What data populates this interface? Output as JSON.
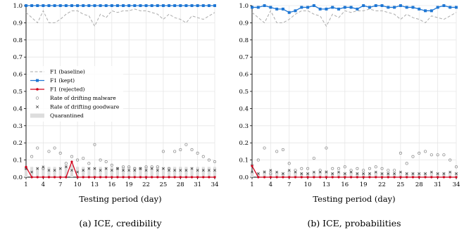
{
  "chart_data": [
    {
      "type": "line",
      "caption": "(a) ICE, credibility",
      "xlabel": "Testing period (day)",
      "ylabel": "",
      "xlim": [
        1,
        34
      ],
      "ylim": [
        0.0,
        1.0
      ],
      "xticks": [
        "1",
        "4",
        "7",
        "10",
        "13",
        "16",
        "19",
        "22",
        "25",
        "28",
        "31",
        "34"
      ],
      "yticks": [
        "0.0",
        "0.1",
        "0.2",
        "0.3",
        "0.4",
        "0.5",
        "0.6",
        "0.7",
        "0.8",
        "0.9",
        "1.0"
      ],
      "legend": {
        "position": "center-left",
        "entries": [
          "F1 (baseline)",
          "F1 (kept)",
          "F1 (rejected)",
          "Rate of drifting malware",
          "Rate of drifting goodware",
          "Quarantined"
        ]
      },
      "x": [
        1,
        2,
        3,
        4,
        5,
        6,
        7,
        8,
        9,
        10,
        11,
        12,
        13,
        14,
        15,
        16,
        17,
        18,
        19,
        20,
        21,
        22,
        23,
        24,
        25,
        26,
        27,
        28,
        29,
        30,
        31,
        32,
        33,
        34
      ],
      "series": [
        {
          "name": "F1 (baseline)",
          "style": "dashed",
          "color": "#aaaaaa",
          "values": [
            0.96,
            0.93,
            0.9,
            0.97,
            0.9,
            0.9,
            0.92,
            0.95,
            0.97,
            0.97,
            0.95,
            0.94,
            0.88,
            0.95,
            0.93,
            0.97,
            0.96,
            0.97,
            0.97,
            0.98,
            0.97,
            0.97,
            0.96,
            0.95,
            0.92,
            0.95,
            0.93,
            0.92,
            0.9,
            0.94,
            0.93,
            0.92,
            0.94,
            0.96
          ]
        },
        {
          "name": "F1 (kept)",
          "style": "solid-square",
          "color": "#1f77d4",
          "values": [
            1.0,
            1.0,
            1.0,
            1.0,
            1.0,
            1.0,
            1.0,
            1.0,
            1.0,
            1.0,
            1.0,
            1.0,
            1.0,
            1.0,
            1.0,
            1.0,
            1.0,
            1.0,
            1.0,
            1.0,
            1.0,
            1.0,
            1.0,
            1.0,
            1.0,
            1.0,
            1.0,
            1.0,
            1.0,
            1.0,
            1.0,
            1.0,
            1.0,
            1.0
          ]
        },
        {
          "name": "F1 (rejected)",
          "style": "solid-dot",
          "color": "#d0021b",
          "values": [
            0.06,
            0.0,
            0.0,
            0.0,
            0.0,
            0.0,
            0.0,
            0.0,
            0.09,
            0.0,
            0.0,
            0.0,
            0.0,
            0.0,
            0.0,
            0.0,
            0.0,
            0.0,
            0.0,
            0.0,
            0.0,
            0.0,
            0.0,
            0.0,
            0.0,
            0.0,
            0.0,
            0.0,
            0.0,
            0.0,
            0.0,
            0.0,
            0.0,
            0.0
          ]
        },
        {
          "name": "Rate of drifting malware",
          "style": "circle",
          "color": "#888888",
          "values": [
            0.05,
            0.12,
            0.17,
            0.05,
            0.15,
            0.17,
            0.14,
            0.08,
            0.12,
            0.1,
            0.11,
            0.08,
            0.19,
            0.1,
            0.09,
            0.07,
            0.05,
            0.06,
            0.06,
            0.05,
            0.05,
            0.06,
            0.06,
            0.06,
            0.15,
            0.05,
            0.15,
            0.16,
            0.19,
            0.16,
            0.14,
            0.12,
            0.1,
            0.09
          ]
        },
        {
          "name": "Rate of drifting goodware",
          "style": "cross",
          "color": "#333333",
          "values": [
            0.05,
            0.03,
            0.05,
            0.06,
            0.04,
            0.04,
            0.05,
            0.06,
            0.04,
            0.03,
            0.04,
            0.05,
            0.05,
            0.04,
            0.05,
            0.04,
            0.05,
            0.04,
            0.04,
            0.04,
            0.05,
            0.04,
            0.05,
            0.04,
            0.05,
            0.04,
            0.04,
            0.04,
            0.04,
            0.05,
            0.04,
            0.04,
            0.04,
            0.04
          ]
        },
        {
          "name": "Quarantined",
          "style": "bar",
          "color": "#dddddd",
          "values": [
            0.06,
            0.06,
            0.06,
            0.06,
            0.06,
            0.06,
            0.06,
            0.07,
            0.07,
            0.06,
            0.06,
            0.06,
            0.06,
            0.06,
            0.06,
            0.06,
            0.06,
            0.06,
            0.06,
            0.06,
            0.06,
            0.06,
            0.06,
            0.06,
            0.06,
            0.06,
            0.06,
            0.06,
            0.06,
            0.06,
            0.06,
            0.06,
            0.06,
            0.06
          ]
        }
      ]
    },
    {
      "type": "line",
      "caption": "(b) ICE, probabilities",
      "xlabel": "Testing period (day)",
      "ylabel": "",
      "xlim": [
        1,
        34
      ],
      "ylim": [
        0.0,
        1.0
      ],
      "xticks": [
        "1",
        "4",
        "7",
        "10",
        "13",
        "16",
        "19",
        "22",
        "25",
        "28",
        "31",
        "34"
      ],
      "yticks": [
        "0.0",
        "0.1",
        "0.2",
        "0.3",
        "0.4",
        "0.5",
        "0.6",
        "0.7",
        "0.8",
        "0.9",
        "1.0"
      ],
      "x": [
        1,
        2,
        3,
        4,
        5,
        6,
        7,
        8,
        9,
        10,
        11,
        12,
        13,
        14,
        15,
        16,
        17,
        18,
        19,
        20,
        21,
        22,
        23,
        24,
        25,
        26,
        27,
        28,
        29,
        30,
        31,
        32,
        33,
        34
      ],
      "series": [
        {
          "name": "F1 (baseline)",
          "style": "dashed",
          "color": "#aaaaaa",
          "values": [
            0.96,
            0.93,
            0.9,
            0.97,
            0.9,
            0.9,
            0.92,
            0.95,
            0.97,
            0.97,
            0.95,
            0.94,
            0.88,
            0.95,
            0.93,
            0.97,
            0.96,
            0.97,
            0.97,
            0.98,
            0.97,
            0.97,
            0.96,
            0.95,
            0.92,
            0.95,
            0.93,
            0.92,
            0.9,
            0.94,
            0.93,
            0.92,
            0.94,
            0.96
          ]
        },
        {
          "name": "F1 (kept)",
          "style": "solid-square",
          "color": "#1f77d4",
          "values": [
            0.99,
            0.99,
            1.0,
            0.99,
            0.98,
            0.98,
            0.96,
            0.97,
            0.99,
            0.99,
            1.0,
            0.98,
            0.98,
            0.99,
            0.98,
            0.99,
            0.99,
            0.98,
            1.0,
            0.99,
            1.0,
            1.0,
            0.99,
            0.99,
            1.0,
            0.99,
            0.99,
            0.98,
            0.97,
            0.97,
            0.99,
            1.0,
            0.99,
            0.99
          ]
        },
        {
          "name": "F1 (rejected)",
          "style": "solid-dot",
          "color": "#d0021b",
          "values": [
            0.065,
            0.0,
            0.0,
            0.0,
            0.0,
            0.0,
            0.0,
            0.0,
            0.0,
            0.0,
            0.0,
            0.0,
            0.0,
            0.0,
            0.0,
            0.0,
            0.0,
            0.0,
            0.0,
            0.0,
            0.0,
            0.0,
            0.0,
            0.0,
            0.0,
            0.0,
            0.0,
            0.0,
            0.0,
            0.0,
            0.0,
            0.0,
            0.0,
            0.0
          ]
        },
        {
          "name": "Rate of drifting malware",
          "style": "circle",
          "color": "#888888",
          "values": [
            0.07,
            0.1,
            0.17,
            0.02,
            0.15,
            0.16,
            0.08,
            0.04,
            0.05,
            0.05,
            0.11,
            0.04,
            0.17,
            0.05,
            0.05,
            0.06,
            0.04,
            0.05,
            0.04,
            0.05,
            0.06,
            0.05,
            0.04,
            0.04,
            0.14,
            0.08,
            0.12,
            0.14,
            0.15,
            0.13,
            0.13,
            0.13,
            0.1,
            0.06
          ]
        },
        {
          "name": "Rate of drifting goodware",
          "style": "cross",
          "color": "#333333",
          "values": [
            0.03,
            0.02,
            0.03,
            0.04,
            0.03,
            0.02,
            0.04,
            0.03,
            0.02,
            0.02,
            0.03,
            0.03,
            0.03,
            0.02,
            0.03,
            0.02,
            0.03,
            0.02,
            0.02,
            0.02,
            0.03,
            0.02,
            0.02,
            0.02,
            0.03,
            0.02,
            0.02,
            0.02,
            0.02,
            0.03,
            0.02,
            0.02,
            0.03,
            0.02
          ]
        },
        {
          "name": "Quarantined",
          "style": "bar",
          "color": "#dddddd",
          "values": [
            0.03,
            0.03,
            0.04,
            0.04,
            0.03,
            0.03,
            0.04,
            0.03,
            0.03,
            0.03,
            0.03,
            0.03,
            0.04,
            0.03,
            0.03,
            0.03,
            0.03,
            0.03,
            0.03,
            0.03,
            0.03,
            0.03,
            0.03,
            0.03,
            0.03,
            0.03,
            0.03,
            0.03,
            0.03,
            0.03,
            0.03,
            0.03,
            0.03,
            0.03
          ]
        }
      ]
    }
  ]
}
